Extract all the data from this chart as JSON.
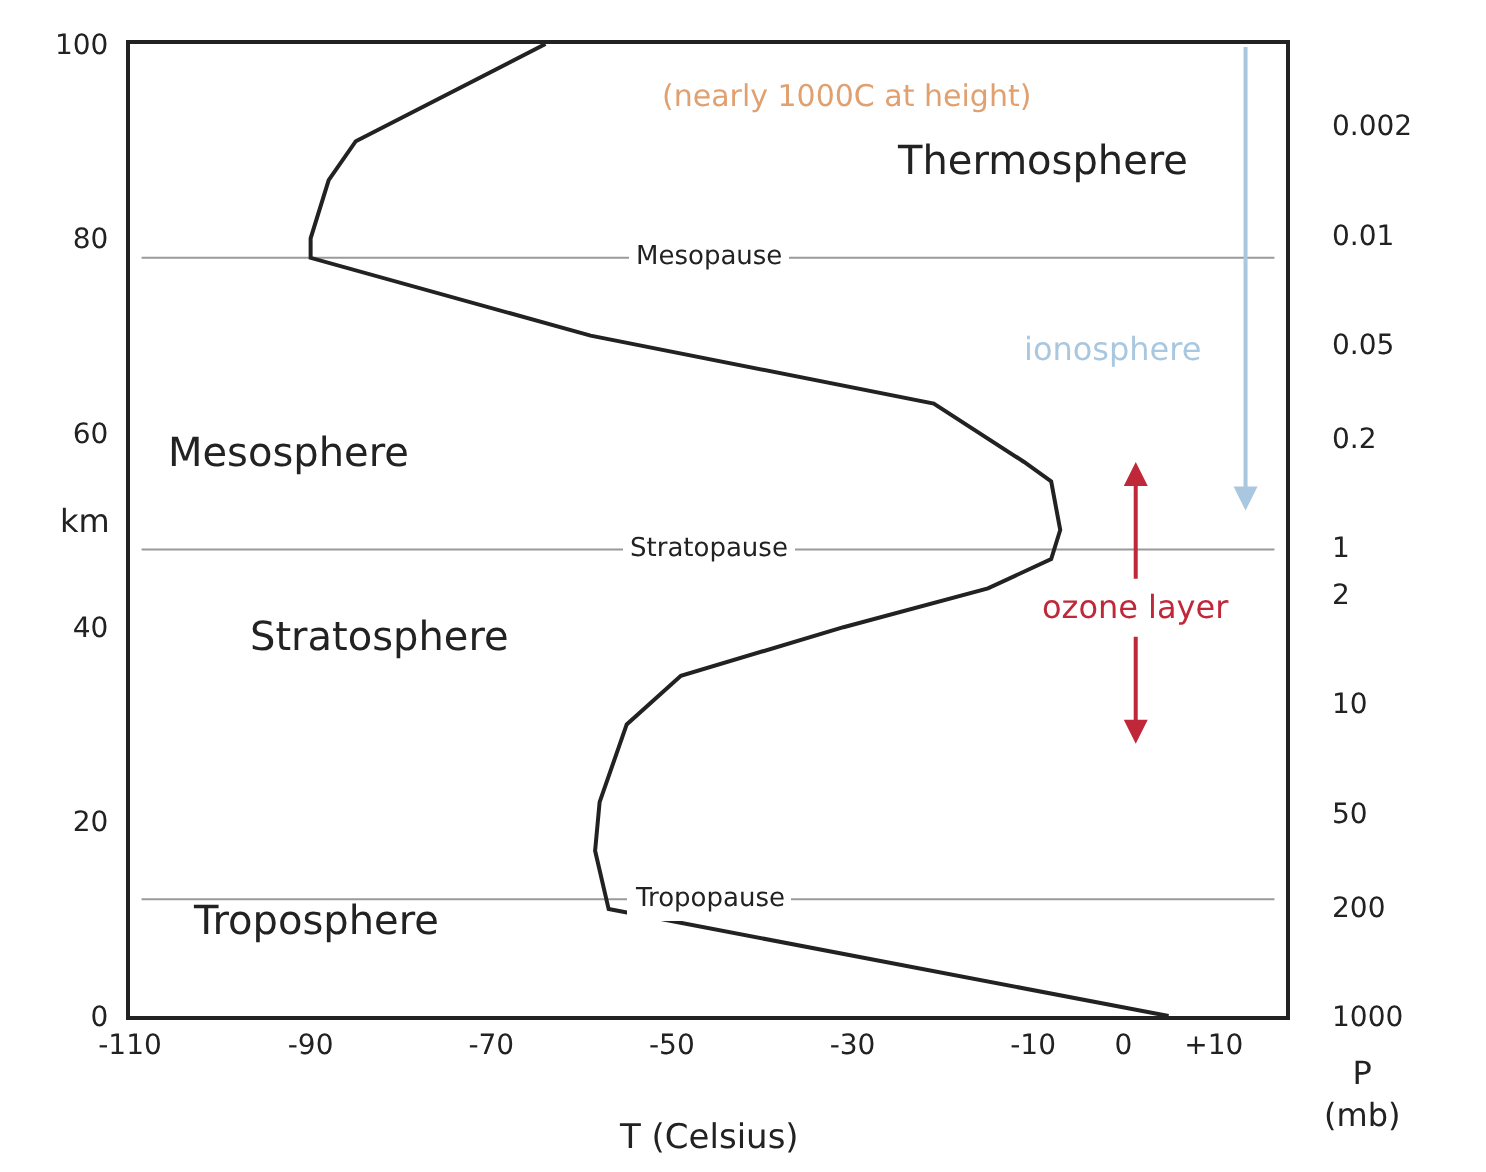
{
  "chart_data": {
    "type": "line",
    "xlabel": "T (Celsius)",
    "ylabel": "km",
    "y2label": "P\n(mb)",
    "series": [
      {
        "color": "#222222",
        "x": [
          5,
          -57,
          -58.5,
          -58,
          -55,
          -49,
          -31,
          -15,
          -8,
          -7,
          -8,
          -11,
          -21,
          -59,
          -90,
          -90,
          -88,
          -85,
          -64
        ],
        "values": [
          0,
          11,
          17,
          22,
          30,
          35,
          40,
          44,
          47,
          50,
          55,
          57,
          63,
          70,
          78,
          80,
          86,
          90,
          100
        ]
      }
    ],
    "xlim": [
      -110,
      18
    ],
    "xticks": [
      -110,
      -90,
      -70,
      -50,
      -30,
      -10,
      0,
      {
        "value": 10,
        "label": "+10"
      }
    ],
    "ylim": [
      0,
      100
    ],
    "yticks": [
      0,
      20,
      40,
      60,
      80,
      100
    ],
    "y2lim": [
      1000,
      0.0006
    ],
    "log": "y2",
    "y2ticks": [
      1000,
      200,
      50,
      10,
      2,
      1,
      0.2,
      0.05,
      0.01,
      0.002
    ],
    "ref_lines": [
      {
        "axis": "y",
        "value": 12,
        "label": "Tropopause",
        "color": "#9a9a9a"
      },
      {
        "axis": "y",
        "value": 48,
        "label": "Stratopause",
        "color": "#9a9a9a"
      },
      {
        "axis": "y",
        "value": 78,
        "label": "Mesopause",
        "color": "#9a9a9a"
      }
    ],
    "annotations": [
      "(nearly 1000C at height)",
      "Thermosphere",
      "Mesosphere",
      "Stratosphere",
      "Troposphere",
      "ionosphere",
      "ozone layer"
    ],
    "grid": false,
    "marker": "none",
    "line_style": "solid"
  }
}
